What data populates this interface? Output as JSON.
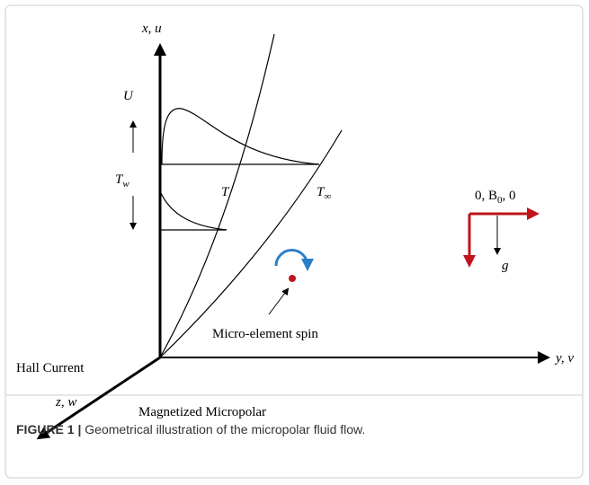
{
  "diagram": {
    "axes": {
      "x": "x, u",
      "y": "y, v",
      "z": "z, w"
    },
    "labels": {
      "velocity": "U",
      "wall_temp": {
        "main": "T",
        "sub": "w"
      },
      "temp": "T",
      "ambient_temp": {
        "main": "T",
        "sub": "∞"
      },
      "field": {
        "pre": "0, B",
        "sub": "0",
        "post": ", 0"
      },
      "gravity": "g",
      "spin": "Micro-element spin",
      "hall": "Hall Current",
      "fluid": "Magnetized Micropolar"
    },
    "caption": {
      "label": "FIGURE 1 |",
      "text": " Geometrical illustration of the micropolar fluid flow."
    }
  }
}
